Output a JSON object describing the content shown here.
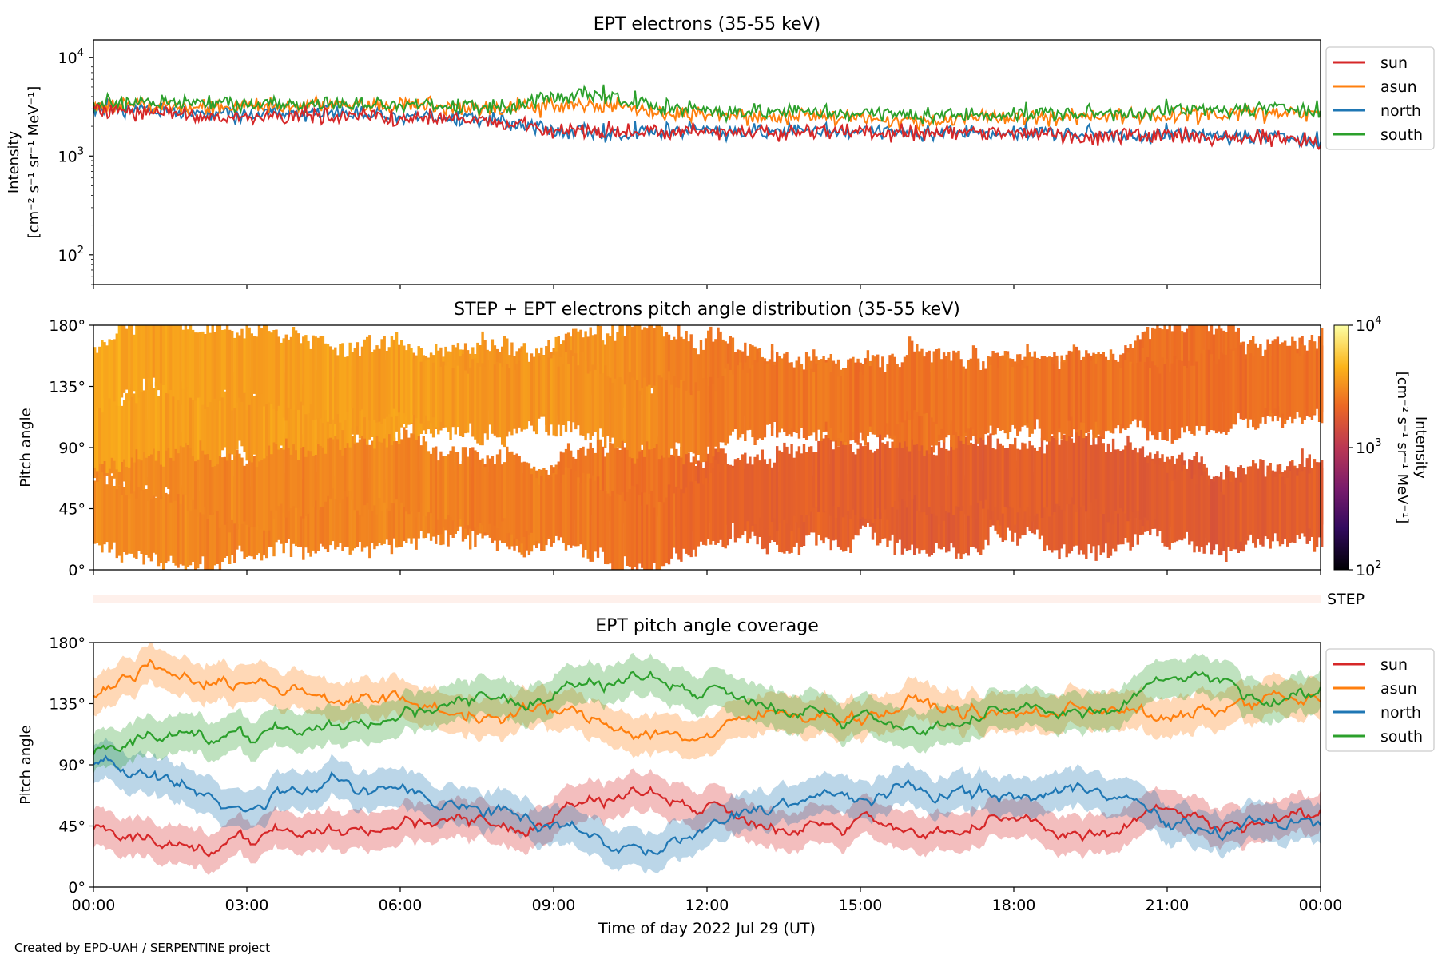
{
  "footer": "Created by EPD-UAH / SERPENTINE project",
  "colors": {
    "sun": "#d62728",
    "asun": "#ff7f0e",
    "north": "#1f77b4",
    "south": "#2ca02c"
  },
  "chart_data": [
    {
      "type": "line",
      "title": "EPT electrons (35-55 keV)",
      "ylabel_line1": "Intensity",
      "ylabel_line2": "[cm⁻² s⁻¹ sr⁻¹ MeV⁻¹]",
      "yscale": "log",
      "ylim": [
        50,
        15000
      ],
      "yticks": [
        {
          "value": 100,
          "base": "10",
          "exp": "2"
        },
        {
          "value": 1000,
          "base": "10",
          "exp": "3"
        },
        {
          "value": 10000,
          "base": "10",
          "exp": "4"
        }
      ],
      "xlim_hours": [
        0,
        24
      ],
      "legend": {
        "placement": "outside-right-top",
        "entries": [
          "sun",
          "asun",
          "north",
          "south"
        ]
      },
      "series": [
        {
          "name": "sun",
          "color": "#d62728",
          "x": [
            0,
            1,
            2,
            3,
            4,
            5,
            6,
            7,
            8,
            9,
            10,
            11,
            12,
            13,
            14,
            15,
            16,
            17,
            18,
            19,
            20,
            21,
            22,
            23,
            24
          ],
          "values": [
            3000,
            2800,
            2500,
            2400,
            2500,
            2600,
            2400,
            2300,
            2200,
            1900,
            1800,
            1750,
            1800,
            1700,
            1800,
            1750,
            1700,
            1700,
            1700,
            1650,
            1600,
            1600,
            1550,
            1500,
            1400
          ]
        },
        {
          "name": "asun",
          "color": "#ff7f0e",
          "x": [
            0,
            1,
            2,
            3,
            4,
            5,
            6,
            7,
            8,
            9,
            10,
            11,
            12,
            13,
            14,
            15,
            16,
            17,
            18,
            19,
            20,
            21,
            22,
            23,
            24
          ],
          "values": [
            3300,
            3200,
            3100,
            3100,
            3300,
            3300,
            3400,
            3200,
            3000,
            3200,
            3300,
            2800,
            2600,
            2500,
            2500,
            2400,
            2300,
            2400,
            2500,
            2500,
            2500,
            2600,
            2600,
            2700,
            2700
          ]
        },
        {
          "name": "north",
          "color": "#1f77b4",
          "x": [
            0,
            1,
            2,
            3,
            4,
            5,
            6,
            7,
            8,
            9,
            10,
            11,
            12,
            13,
            14,
            15,
            16,
            17,
            18,
            19,
            20,
            21,
            22,
            23,
            24
          ],
          "values": [
            3100,
            2900,
            2700,
            2600,
            2700,
            2700,
            2500,
            2400,
            2300,
            1800,
            1700,
            1800,
            1850,
            1750,
            1800,
            1800,
            1700,
            1750,
            1750,
            1700,
            1650,
            1650,
            1600,
            1550,
            1500
          ]
        },
        {
          "name": "south",
          "color": "#2ca02c",
          "x": [
            0,
            1,
            2,
            3,
            4,
            5,
            6,
            7,
            8,
            9,
            10,
            11,
            12,
            13,
            14,
            15,
            16,
            17,
            18,
            19,
            20,
            21,
            22,
            23,
            24
          ],
          "values": [
            3500,
            3400,
            3500,
            3300,
            3300,
            3300,
            3300,
            3200,
            3100,
            4000,
            4200,
            3200,
            2900,
            2800,
            2800,
            2700,
            2600,
            2600,
            2700,
            2700,
            2700,
            2900,
            2900,
            3000,
            3100
          ]
        }
      ]
    },
    {
      "type": "heatmap",
      "title": "STEP + EPT electrons pitch angle distribution (35-55 keV)",
      "ylabel": "Pitch angle",
      "ylim": [
        0,
        180
      ],
      "yticks": [
        "0°",
        "45°",
        "90°",
        "135°",
        "180°"
      ],
      "xlim_hours": [
        0,
        24
      ],
      "colorbar": {
        "label_line1": "Intensity",
        "label_line2": "[cm⁻² s⁻¹ sr⁻¹ MeV⁻¹]",
        "scale": "log",
        "range": [
          100,
          10000
        ],
        "ticks": [
          {
            "base": "10",
            "exp": "2"
          },
          {
            "base": "10",
            "exp": "3"
          },
          {
            "base": "10",
            "exp": "4"
          }
        ],
        "colormap": [
          "#000004",
          "#320a5e",
          "#781b6c",
          "#bb3754",
          "#ec6824",
          "#fbb41a",
          "#fcffa4"
        ]
      },
      "hourly_intensity": [
        3100,
        3000,
        2900,
        2800,
        2900,
        2900,
        2900,
        2800,
        2600,
        2600,
        2500,
        2300,
        2000,
        1900,
        1950,
        1900,
        1850,
        1850,
        1900,
        1850,
        1800,
        1800,
        1750,
        1800,
        1800
      ]
    },
    {
      "type": "line",
      "label": "STEP",
      "note": "STEP coverage strip"
    },
    {
      "type": "line",
      "title": "EPT pitch angle coverage",
      "ylabel": "Pitch angle",
      "ylim": [
        0,
        180
      ],
      "yticks": [
        "0°",
        "45°",
        "90°",
        "135°",
        "180°"
      ],
      "xlabel": "Time of day 2022 Jul 29 (UT)",
      "xticks": [
        "00:00",
        "03:00",
        "06:00",
        "09:00",
        "12:00",
        "15:00",
        "18:00",
        "21:00",
        "00:00"
      ],
      "xlim_hours": [
        0,
        24
      ],
      "legend": {
        "placement": "outside-right-top",
        "entries": [
          "sun",
          "asun",
          "north",
          "south"
        ]
      },
      "series": [
        {
          "name": "sun",
          "color": "#d62728",
          "x": [
            0,
            1,
            2,
            3,
            4,
            5,
            6,
            7,
            8,
            9,
            10,
            11,
            12,
            13,
            14,
            15,
            16,
            17,
            18,
            19,
            20,
            21,
            22,
            23,
            24
          ],
          "values": [
            45,
            35,
            30,
            35,
            40,
            42,
            45,
            45,
            40,
            55,
            65,
            70,
            60,
            50,
            45,
            50,
            45,
            40,
            45,
            40,
            40,
            60,
            40,
            45,
            50
          ]
        },
        {
          "name": "asun",
          "color": "#ff7f0e",
          "x": [
            0,
            1,
            2,
            3,
            4,
            5,
            6,
            7,
            8,
            9,
            10,
            11,
            12,
            13,
            14,
            15,
            16,
            17,
            18,
            19,
            20,
            21,
            22,
            23,
            24
          ],
          "values": [
            140,
            165,
            155,
            150,
            145,
            140,
            135,
            130,
            125,
            130,
            120,
            115,
            110,
            125,
            130,
            125,
            135,
            130,
            125,
            130,
            135,
            120,
            130,
            140,
            135
          ]
        },
        {
          "name": "north",
          "color": "#1f77b4",
          "x": [
            0,
            1,
            2,
            3,
            4,
            5,
            6,
            7,
            8,
            9,
            10,
            11,
            12,
            13,
            14,
            15,
            16,
            17,
            18,
            19,
            20,
            21,
            22,
            23,
            24
          ],
          "values": [
            90,
            85,
            70,
            65,
            70,
            75,
            70,
            60,
            55,
            40,
            30,
            25,
            40,
            60,
            65,
            65,
            70,
            70,
            65,
            70,
            75,
            45,
            40,
            50,
            45
          ]
        },
        {
          "name": "south",
          "color": "#2ca02c",
          "x": [
            0,
            1,
            2,
            3,
            4,
            5,
            6,
            7,
            8,
            9,
            10,
            11,
            12,
            13,
            14,
            15,
            16,
            17,
            18,
            19,
            20,
            21,
            22,
            23,
            24
          ],
          "values": [
            100,
            110,
            115,
            110,
            115,
            120,
            125,
            130,
            135,
            145,
            150,
            155,
            145,
            140,
            130,
            125,
            120,
            120,
            125,
            130,
            130,
            155,
            150,
            130,
            140
          ]
        }
      ]
    }
  ]
}
